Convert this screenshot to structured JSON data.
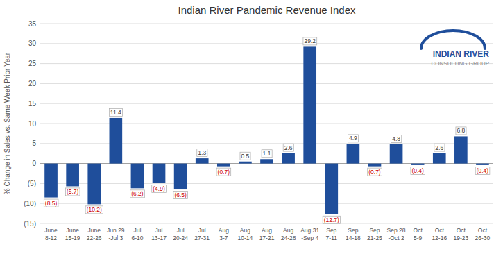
{
  "chart_data": {
    "type": "bar",
    "title": "Indian River Pandemic Revenue Index",
    "ylabel": "% Change in Sales vs. Same Week Prior Year",
    "categories": [
      "June\n8-12",
      "June\n15-19",
      "June\n22-26",
      "Jun 29\n-Jul 3",
      "Jul\n6-10",
      "Jul\n13-17",
      "Jul\n20-24",
      "Jul\n27-31",
      "Aug\n3-7",
      "Aug\n10-14",
      "Aug\n17-21",
      "Aug\n24-28",
      "Aug 31\n-Sep 4",
      "Sep\n7-11",
      "Sep\n14-18",
      "Sep\n21-25",
      "Sep 28\n-Oct 2",
      "Oct\n5-9",
      "Oct\n12-16",
      "Oct\n19-23",
      "Oct\n26-30"
    ],
    "values": [
      -8.5,
      -5.7,
      -10.2,
      11.4,
      -6.2,
      -4.9,
      -6.5,
      1.3,
      -0.7,
      0.5,
      1.1,
      2.6,
      29.2,
      -12.7,
      4.9,
      -0.7,
      4.8,
      -0.4,
      2.6,
      6.8,
      -0.4
    ],
    "value_labels": [
      "(8.5)",
      "(5.7)",
      "(10.2)",
      "11.4",
      "(6.2)",
      "(4.9)",
      "(6.5)",
      "1.3",
      "(0.7)",
      "0.5",
      "1.1",
      "2.6",
      "29.2",
      "(12.7)",
      "4.9",
      "(0.7)",
      "4.8",
      "(0.4)",
      "2.6",
      "6.8",
      "(0.4)"
    ],
    "data_labels": true,
    "color": "#1F4E9B",
    "ylim": [
      -15,
      35
    ],
    "yticks": [
      {
        "value": -15,
        "label": "(15)"
      },
      {
        "value": -10,
        "label": "(10)"
      },
      {
        "value": -5,
        "label": "(5)"
      },
      0,
      5,
      10,
      15,
      20,
      25,
      30,
      35
    ],
    "grid": true,
    "annotations": [
      "INDIAN RIVER",
      "CONSULTING GROUP"
    ]
  }
}
